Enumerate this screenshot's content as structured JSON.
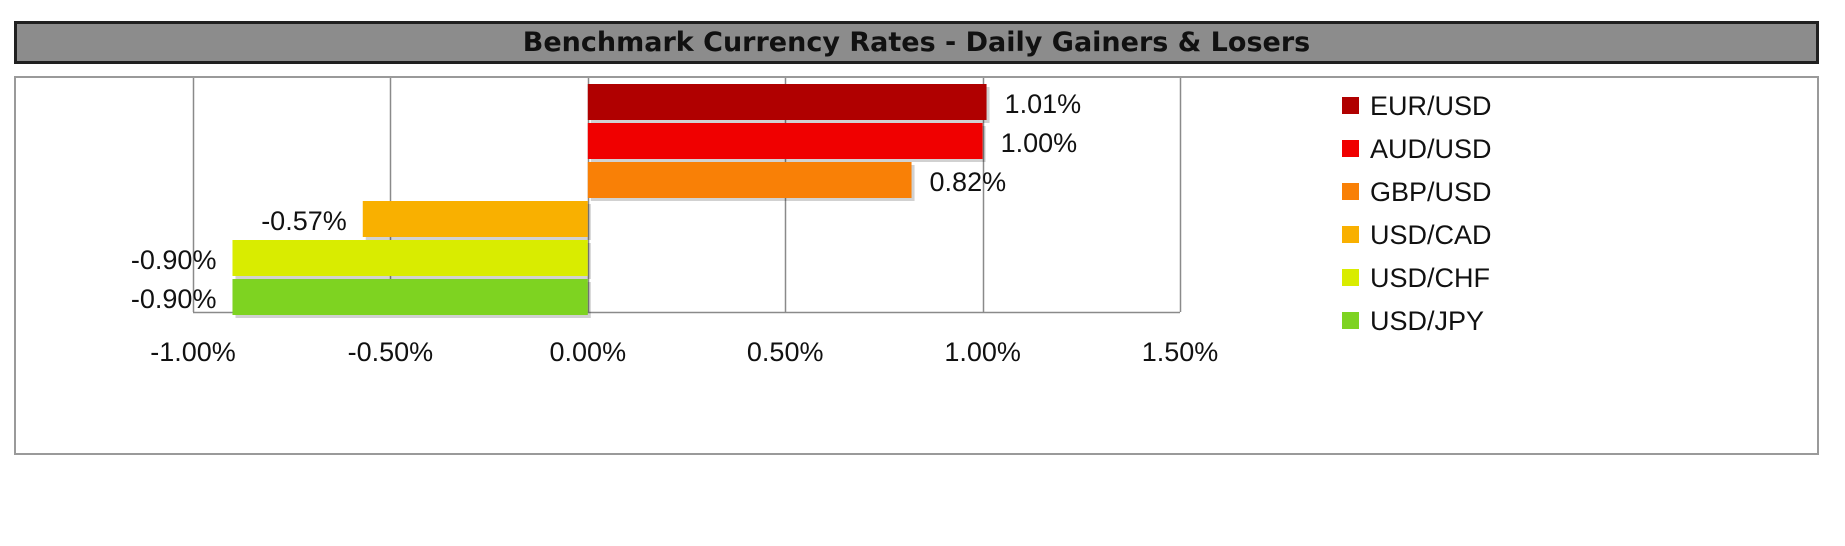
{
  "chart_data": {
    "type": "bar",
    "orientation": "horizontal",
    "title": "Benchmark Currency Rates - Daily Gainers & Losers",
    "xlabel": "",
    "ylabel": "",
    "xlim": [
      -1.0,
      1.5
    ],
    "xticks": [
      -1.0,
      -0.5,
      0.0,
      0.5,
      1.0,
      1.5
    ],
    "xtick_labels": [
      "-1.00%",
      "-0.50%",
      "0.00%",
      "0.50%",
      "1.00%",
      "1.50%"
    ],
    "grid": "vertical",
    "legend_position": "right",
    "series": [
      {
        "name": "EUR/USD",
        "value": 1.01,
        "label": "1.01%",
        "color": "#b00000"
      },
      {
        "name": "AUD/USD",
        "value": 1.0,
        "label": "1.00%",
        "color": "#f00000"
      },
      {
        "name": "GBP/USD",
        "value": 0.82,
        "label": "0.82%",
        "color": "#f98006"
      },
      {
        "name": "USD/CAD",
        "value": -0.57,
        "label": "-0.57%",
        "color": "#f9b000"
      },
      {
        "name": "USD/CHF",
        "value": -0.9,
        "label": "-0.90%",
        "color": "#d9ec00"
      },
      {
        "name": "USD/JPY",
        "value": -0.9,
        "label": "-0.90%",
        "color": "#7ed321"
      }
    ]
  }
}
